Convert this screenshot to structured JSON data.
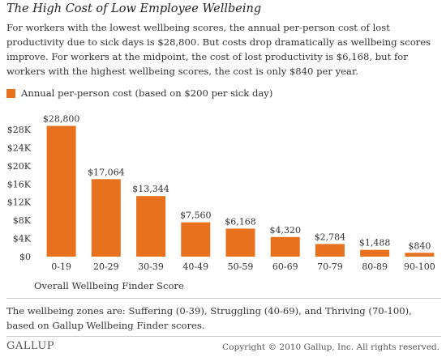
{
  "title": "The High Cost of Low Employee Wellbeing",
  "description": "For workers with the lowest wellbeing scores, the annual per-person cost of lost productivity due to sick days is $28,800. But costs drop dramatically as wellbeing scores improve. For workers at the midpoint, the cost of lost productivity is $6,168, but for workers with the highest wellbeing scores, the cost is only $840 per year.",
  "legend_label": "Annual per-person cost (based on $200 per sick day)",
  "colors": {
    "bar": "#E8711E",
    "text": "#333333",
    "rule": "#cccccc"
  },
  "chart_data": {
    "type": "bar",
    "title": "The High Cost of Low Employee Wellbeing",
    "xlabel": "Overall Wellbeing Finder Score",
    "ylabel": "",
    "categories": [
      "0-19",
      "20-29",
      "30-39",
      "40-49",
      "50-59",
      "60-69",
      "70-79",
      "80-89",
      "90-100"
    ],
    "series": [
      {
        "name": "Annual per-person cost (based on $200 per sick day)",
        "values": [
          28800,
          17064,
          13344,
          7560,
          6168,
          4320,
          2784,
          1488,
          840
        ],
        "data_labels": [
          "$28,800",
          "$17,064",
          "$13,344",
          "$7,560",
          "$6,168",
          "$4,320",
          "$2,784",
          "$1,488",
          "$840"
        ]
      }
    ],
    "ylim": [
      0,
      28000
    ],
    "yticks": [
      0,
      4000,
      8000,
      12000,
      16000,
      20000,
      24000,
      28000
    ],
    "ytick_labels": [
      "$0",
      "$4K",
      "$8K",
      "$12K",
      "$16K",
      "$20K",
      "$24K",
      "$28K"
    ],
    "grid": false,
    "legend_position": "top-left"
  },
  "footnote": "The wellbeing zones are: Suffering (0-39), Struggling (40-69), and Thriving (70-100), based on Gallup Wellbeing Finder scores.",
  "brand": "GALLUP",
  "copyright": "Copyright © 2010 Gallup, Inc. All rights reserved."
}
